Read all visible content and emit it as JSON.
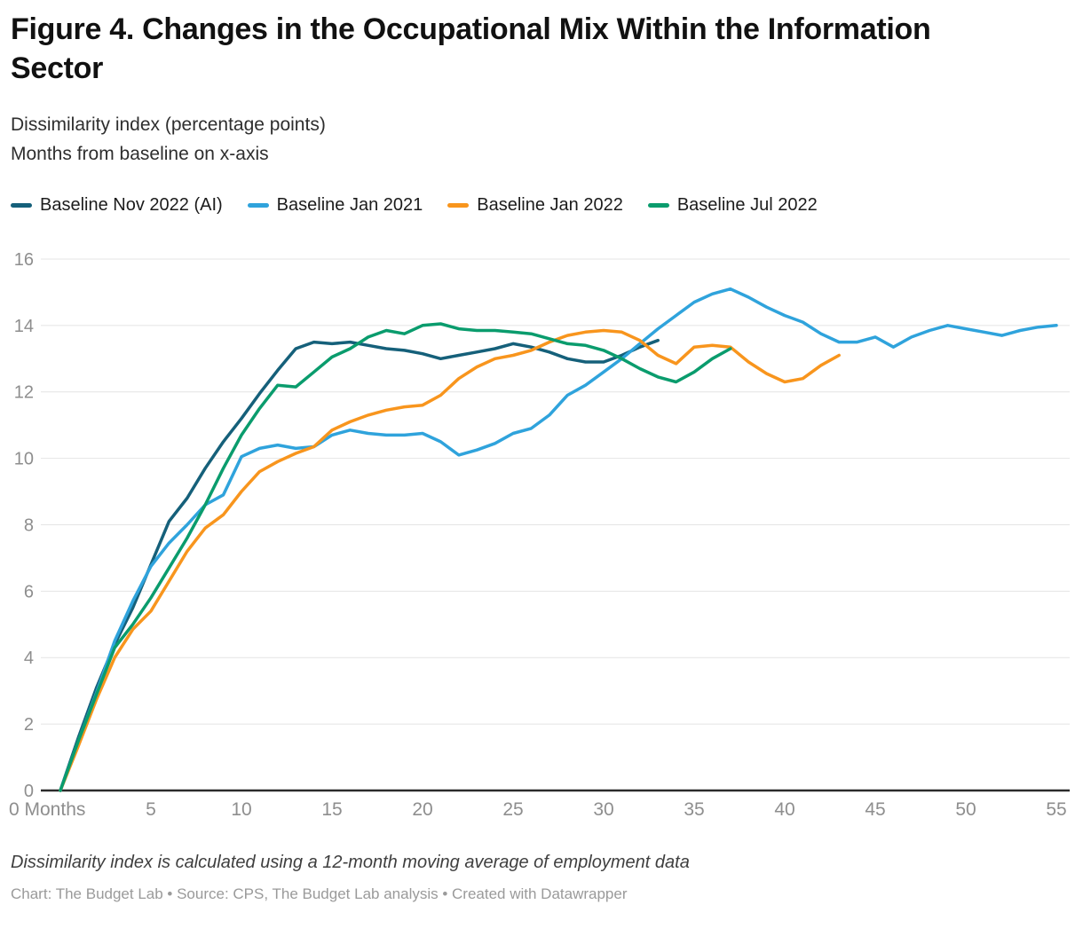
{
  "header": {
    "title": "Figure 4. Changes in the Occupational Mix Within the Information Sector",
    "subtitle_line1": "Dissimilarity index (percentage points)",
    "subtitle_line2": "Months from baseline on x-axis"
  },
  "legend": [
    {
      "label": "Baseline Nov 2022 (AI)",
      "color": "#15607a"
    },
    {
      "label": "Baseline Jan 2021",
      "color": "#2fa3dc"
    },
    {
      "label": "Baseline Jan 2022",
      "color": "#f8951d"
    },
    {
      "label": "Baseline Jul 2022",
      "color": "#0a9c6d"
    }
  ],
  "chart_data": {
    "type": "line",
    "title": "Figure 4. Changes in the Occupational Mix Within the Information Sector",
    "xlabel": "Months from baseline",
    "ylabel": "Dissimilarity index (percentage points)",
    "x_first_tick_label": "0 Months",
    "x_ticks": [
      0,
      5,
      10,
      15,
      20,
      25,
      30,
      35,
      40,
      45,
      50,
      55
    ],
    "y_ticks": [
      0,
      2,
      4,
      6,
      8,
      10,
      12,
      14,
      16
    ],
    "xlim": [
      0,
      55
    ],
    "ylim": [
      0,
      16
    ],
    "grid": true,
    "legend_position": "top",
    "x": "months from baseline (0,1,2,... per series)",
    "series": [
      {
        "name": "Baseline Nov 2022 (AI)",
        "color": "#15607a",
        "values": [
          0,
          1.6,
          3.1,
          4.4,
          5.5,
          6.8,
          8.1,
          8.8,
          9.7,
          10.5,
          11.2,
          11.95,
          12.65,
          13.3,
          13.5,
          13.45,
          13.5,
          13.4,
          13.3,
          13.25,
          13.15,
          13.0,
          13.1,
          13.2,
          13.3,
          13.45,
          13.35,
          13.2,
          13.0,
          12.9,
          12.9,
          13.1,
          13.35,
          13.55
        ]
      },
      {
        "name": "Baseline Jan 2021",
        "color": "#2fa3dc",
        "values": [
          0,
          1.5,
          2.95,
          4.5,
          5.7,
          6.75,
          7.45,
          8.0,
          8.6,
          8.9,
          10.05,
          10.3,
          10.4,
          10.3,
          10.35,
          10.7,
          10.85,
          10.75,
          10.7,
          10.7,
          10.75,
          10.5,
          10.1,
          10.25,
          10.45,
          10.75,
          10.9,
          11.3,
          11.9,
          12.2,
          12.6,
          13.0,
          13.45,
          13.9,
          14.3,
          14.7,
          14.95,
          15.1,
          14.85,
          14.55,
          14.3,
          14.1,
          13.75,
          13.5,
          13.5,
          13.65,
          13.35,
          13.65,
          13.85,
          14.0,
          13.9,
          13.8,
          13.7,
          13.85,
          13.95,
          14.0
        ]
      },
      {
        "name": "Baseline Jan 2022",
        "color": "#f8951d",
        "values": [
          0,
          1.35,
          2.75,
          4.0,
          4.85,
          5.4,
          6.3,
          7.2,
          7.9,
          8.3,
          9.0,
          9.6,
          9.9,
          10.15,
          10.35,
          10.85,
          11.1,
          11.3,
          11.45,
          11.55,
          11.6,
          11.9,
          12.4,
          12.75,
          13.0,
          13.1,
          13.25,
          13.5,
          13.7,
          13.8,
          13.85,
          13.8,
          13.55,
          13.1,
          12.85,
          13.35,
          13.4,
          13.35,
          12.9,
          12.55,
          12.3,
          12.4,
          12.8,
          13.1
        ]
      },
      {
        "name": "Baseline Jul 2022",
        "color": "#0a9c6d",
        "values": [
          0,
          1.5,
          2.9,
          4.3,
          5.0,
          5.8,
          6.7,
          7.6,
          8.6,
          9.7,
          10.7,
          11.5,
          12.2,
          12.15,
          12.6,
          13.05,
          13.3,
          13.65,
          13.85,
          13.75,
          14.0,
          14.05,
          13.9,
          13.85,
          13.85,
          13.8,
          13.75,
          13.6,
          13.45,
          13.4,
          13.25,
          13.0,
          12.7,
          12.45,
          12.3,
          12.6,
          13.0,
          13.3
        ]
      }
    ]
  },
  "footer": {
    "note": "Dissimilarity index is calculated using a 12-month moving average of employment data",
    "credit": "Chart: The Budget Lab • Source: CPS, The Budget Lab analysis • Created with Datawrapper"
  },
  "colors": {
    "gridline": "#e4e4e4",
    "axis_line": "#2b2b2b",
    "tick_label": "#8e8e8e"
  }
}
